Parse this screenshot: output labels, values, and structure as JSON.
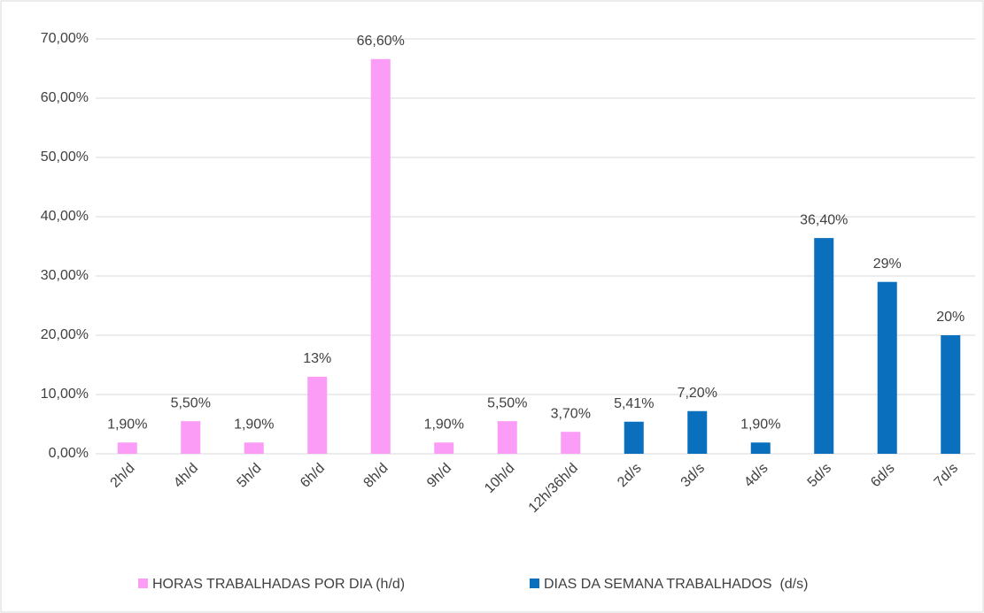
{
  "chart_data": {
    "type": "bar",
    "categories": [
      "2h/d",
      "4h/d",
      "5h/d",
      "6h/d",
      "8h/d",
      "9h/d",
      "10h/d",
      "12h/36h/d",
      "2d/s",
      "3d/s",
      "4d/s",
      "5d/s",
      "6d/s",
      "7d/s"
    ],
    "series": [
      {
        "name": "HORAS TRABALHADAS POR DIA (h/d)",
        "color": "#fb9cf7",
        "values": [
          1.9,
          5.5,
          1.9,
          13,
          66.6,
          1.9,
          5.5,
          3.7,
          null,
          null,
          null,
          null,
          null,
          null
        ],
        "value_labels": [
          "1,90%",
          "5,50%",
          "1,90%",
          "13%",
          "66,60%",
          "1,90%",
          "5,50%",
          "3,70%",
          null,
          null,
          null,
          null,
          null,
          null
        ]
      },
      {
        "name": "DIAS DA SEMANA TRABALHADOS  (d/s)",
        "color": "#0a6fbd",
        "values": [
          null,
          null,
          null,
          null,
          null,
          null,
          null,
          null,
          5.41,
          7.2,
          1.9,
          36.4,
          29,
          20
        ],
        "value_labels": [
          null,
          null,
          null,
          null,
          null,
          null,
          null,
          null,
          "5,41%",
          "7,20%",
          "1,90%",
          "36,40%",
          "29%",
          "20%"
        ]
      }
    ],
    "ylim": [
      0,
      70
    ],
    "yticks": [
      {
        "value": 0,
        "label": "0,00%"
      },
      {
        "value": 10,
        "label": "10,00%"
      },
      {
        "value": 20,
        "label": "20,00%"
      },
      {
        "value": 30,
        "label": "30,00%"
      },
      {
        "value": 40,
        "label": "40,00%"
      },
      {
        "value": 50,
        "label": "50,00%"
      },
      {
        "value": 60,
        "label": "60,00%"
      },
      {
        "value": 70,
        "label": "70,00%"
      }
    ],
    "grid": true,
    "legend": "bottom"
  }
}
